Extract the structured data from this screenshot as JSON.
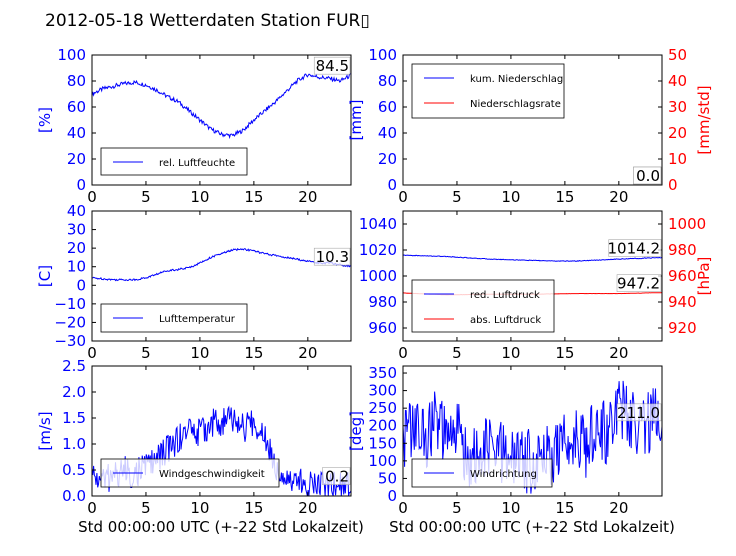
{
  "figure": {
    "title": "2012-05-18 Wetterdaten Station FUR▯",
    "xlabel": "Std 00:00:00 UTC (+-22 Std Lokalzeit)"
  },
  "colors": {
    "blue": "#0000ff",
    "red": "#ff0000",
    "black": "#000000"
  },
  "chart_data": [
    {
      "type": "line",
      "panel": "humidity",
      "ylabel": "[%]",
      "xlim": [
        0,
        24
      ],
      "ylim": [
        0,
        100
      ],
      "xticks": [
        0,
        5,
        10,
        15,
        20
      ],
      "yticks": [
        0,
        20,
        40,
        60,
        80,
        100
      ],
      "legend_position": "lower-left",
      "last_value_label": "84.5",
      "series": [
        {
          "name": "rel. Luftfeuchte",
          "color": "#0000ff",
          "x": [
            0,
            1,
            2,
            3,
            4,
            5,
            6,
            7,
            8,
            9,
            10,
            11,
            12,
            13,
            14,
            15,
            16,
            17,
            18,
            19,
            20,
            21,
            22,
            23,
            24
          ],
          "y": [
            70,
            74,
            76,
            78,
            79,
            77,
            73,
            68,
            64,
            57,
            50,
            43,
            39,
            38,
            42,
            50,
            57,
            64,
            72,
            80,
            85,
            83,
            82,
            80,
            84.5
          ]
        }
      ]
    },
    {
      "type": "line",
      "panel": "precipitation",
      "ylabel": "[mm]",
      "ylabel2": "[mm/std]",
      "xlim": [
        0,
        24
      ],
      "ylim": [
        0,
        100
      ],
      "ylim2": [
        0,
        50
      ],
      "xticks": [
        0,
        5,
        10,
        15,
        20
      ],
      "yticks": [
        0,
        20,
        40,
        60,
        80,
        100
      ],
      "yticks2": [
        0,
        10,
        20,
        30,
        40,
        50
      ],
      "legend_position": "upper-left",
      "last_value_labels": [
        "0.0",
        "0.0"
      ],
      "series": [
        {
          "name": "kum. Niederschlag",
          "color": "#0000ff",
          "axis": "left",
          "x": [
            0,
            24
          ],
          "y": [
            0,
            0
          ]
        },
        {
          "name": "Niederschlagsrate",
          "color": "#ff0000",
          "axis": "right",
          "x": [
            0,
            24
          ],
          "y": [
            0,
            0
          ]
        }
      ]
    },
    {
      "type": "line",
      "panel": "temperature",
      "ylabel": "[C]",
      "xlim": [
        0,
        24
      ],
      "ylim": [
        -30,
        40
      ],
      "xticks": [
        0,
        5,
        10,
        15,
        20
      ],
      "yticks": [
        -30,
        -20,
        -10,
        0,
        10,
        20,
        30,
        40
      ],
      "legend_position": "lower-left",
      "last_value_label": "10.3",
      "series": [
        {
          "name": "Lufttemperatur",
          "color": "#0000ff",
          "x": [
            0,
            1,
            2,
            3,
            4,
            5,
            6,
            7,
            8,
            9,
            10,
            11,
            12,
            13,
            14,
            15,
            16,
            17,
            18,
            19,
            20,
            21,
            22,
            23,
            24
          ],
          "y": [
            4,
            3.5,
            3,
            3,
            3,
            4,
            6,
            8,
            8.5,
            9.5,
            12,
            15,
            17,
            19,
            19.5,
            18.5,
            17,
            16,
            15,
            14,
            13,
            12,
            12,
            11,
            10.3
          ]
        }
      ]
    },
    {
      "type": "line",
      "panel": "pressure",
      "ylabel2": "[hPa]",
      "xlim": [
        0,
        24
      ],
      "ylim": [
        950,
        1050
      ],
      "ylim2": [
        910,
        1010
      ],
      "xticks": [
        0,
        5,
        10,
        15,
        20
      ],
      "yticks": [
        960,
        980,
        1000,
        1020,
        1040
      ],
      "yticks2": [
        920,
        940,
        960,
        980,
        1000
      ],
      "legend_position": "lower-left",
      "last_value_labels": [
        "1014.2",
        "947.2"
      ],
      "series": [
        {
          "name": "red. Luftdruck",
          "color": "#0000ff",
          "axis": "left",
          "x": [
            0,
            4,
            8,
            12,
            14,
            16,
            20,
            24
          ],
          "y": [
            1016,
            1015,
            1013,
            1012,
            1011.5,
            1011.5,
            1013,
            1014.2
          ]
        },
        {
          "name": "abs. Luftdruck",
          "color": "#ff0000",
          "axis": "right",
          "x": [
            0,
            4,
            8,
            12,
            16,
            20,
            24
          ],
          "y": [
            947,
            945.5,
            946,
            946,
            946.5,
            946.5,
            947.2
          ]
        }
      ]
    },
    {
      "type": "line",
      "panel": "wind_speed",
      "ylabel": "[m/s]",
      "xlim": [
        0,
        24
      ],
      "ylim": [
        0,
        2.5
      ],
      "xticks": [
        0,
        5,
        10,
        15,
        20
      ],
      "yticks": [
        0.0,
        0.5,
        1.0,
        1.5,
        2.0,
        2.5
      ],
      "legend_position": "lower-left",
      "last_value_label": "0.2",
      "series": [
        {
          "name": "Windgeschwindigkeit",
          "color": "#0000ff",
          "x": [
            0,
            1,
            2,
            3,
            4,
            5,
            6,
            7,
            8,
            9,
            10,
            11,
            12,
            13,
            14,
            15,
            16,
            17,
            18,
            19,
            20,
            21,
            22,
            23,
            24
          ],
          "y": [
            0.4,
            0.3,
            0.4,
            0.5,
            0.4,
            0.6,
            0.7,
            0.9,
            1.1,
            1.3,
            1.2,
            1.4,
            1.4,
            1.5,
            1.3,
            1.4,
            1.2,
            0.6,
            0.4,
            0.3,
            0.2,
            0.3,
            0.2,
            0.2,
            0.2
          ]
        }
      ]
    },
    {
      "type": "line",
      "panel": "wind_direction",
      "ylabel": "[deg]",
      "xlim": [
        0,
        24
      ],
      "ylim": [
        0,
        370
      ],
      "xticks": [
        0,
        5,
        10,
        15,
        20
      ],
      "yticks": [
        0,
        50,
        100,
        150,
        200,
        250,
        300,
        350
      ],
      "legend_position": "lower-left",
      "last_value_label": "211.0",
      "series": [
        {
          "name": "Windrichtung",
          "color": "#0000ff",
          "x": [
            0,
            1,
            2,
            3,
            4,
            5,
            6,
            7,
            8,
            9,
            10,
            11,
            12,
            13,
            14,
            15,
            16,
            17,
            18,
            19,
            20,
            21,
            22,
            23,
            24
          ],
          "y": [
            170,
            200,
            160,
            220,
            150,
            190,
            110,
            100,
            140,
            120,
            110,
            100,
            100,
            130,
            110,
            150,
            190,
            140,
            200,
            180,
            260,
            230,
            200,
            220,
            211
          ]
        }
      ]
    }
  ]
}
